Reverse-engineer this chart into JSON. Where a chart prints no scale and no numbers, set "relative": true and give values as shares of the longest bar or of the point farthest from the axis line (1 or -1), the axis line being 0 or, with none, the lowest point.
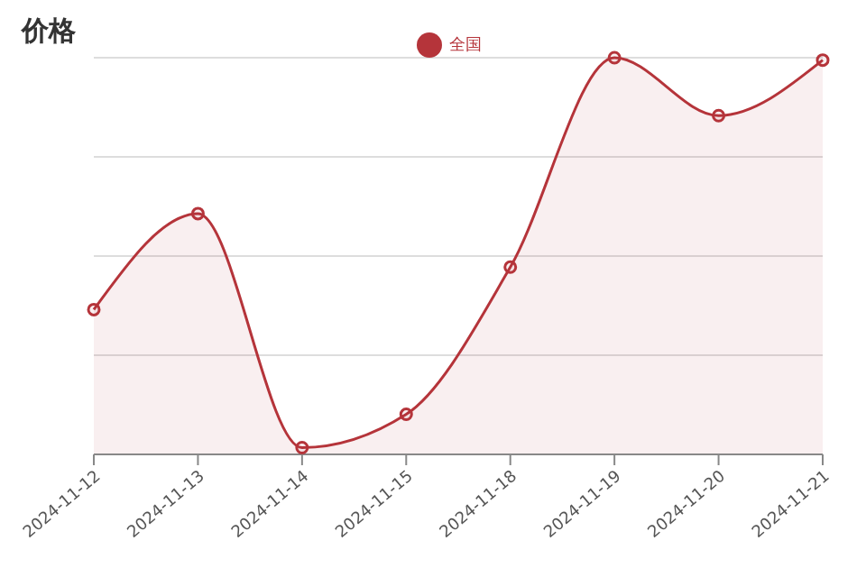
{
  "chart_data": {
    "type": "area",
    "title": "价格",
    "relative": true,
    "categories": [
      "2024-11-12",
      "2024-11-13",
      "2024-11-14",
      "2024-11-15",
      "2024-11-18",
      "2024-11-19",
      "2024-11-20",
      "2024-11-21"
    ],
    "series": [
      {
        "name": "全国",
        "color": "#b5343a",
        "values": [
          0.365,
          0.607,
          0.017,
          0.101,
          0.472,
          1,
          0.854,
          0.994
        ]
      }
    ],
    "grid": "y",
    "legend": "top",
    "marker": "circle",
    "line_style": "solid"
  }
}
